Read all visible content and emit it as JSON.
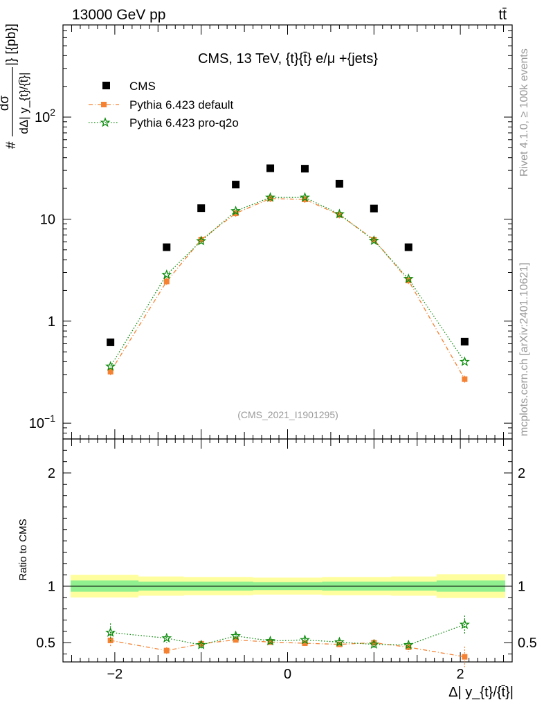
{
  "header": {
    "energy_label": "13000 GeV pp",
    "process_label": "tt̄",
    "side_label_rivet": "Rivet 4.1.0, ≥ 100k events",
    "side_label_mcplots": "mcplots.cern.ch [arXiv:2401.10621]"
  },
  "colors": {
    "cms": "#000000",
    "pythia_default": "#f58232",
    "pythia_proq2o": "#0a8a0a",
    "band_inner": "#90f090",
    "band_outer": "#fffe9e"
  },
  "chart_data": [
    {
      "type": "scatter",
      "title": "CMS, 13 TeV, {t}{t̄} e/μ +{jets}",
      "watermark": "(CMS_2021_I1901295)",
      "ylabel_numerator": "dσ",
      "ylabel_denominator": "dΔ| y_{t}/{t̄}|",
      "ylabel_prefix": "#",
      "ylabel_suffix": "|} [{pb}]",
      "yscale": "log",
      "ylim": [
        0.07,
        800
      ],
      "xlim": [
        -2.6,
        2.6
      ],
      "y_ticks": [
        {
          "value": 0.1,
          "base": "10",
          "exp": "−1"
        },
        {
          "value": 1,
          "base": "1",
          "exp": ""
        },
        {
          "value": 10,
          "base": "10",
          "exp": ""
        },
        {
          "value": 100,
          "base": "10",
          "exp": "2"
        }
      ],
      "legend_position": "top-left",
      "x": [
        -2.05,
        -1.4,
        -1.0,
        -0.6,
        -0.2,
        0.2,
        0.6,
        1.0,
        1.4,
        2.05
      ],
      "series": [
        {
          "name": "CMS",
          "values": [
            0.62,
            5.3,
            12.8,
            21.8,
            31.5,
            31.2,
            22.2,
            12.7,
            5.3,
            0.63
          ]
        },
        {
          "name": "Pythia 6.423 default",
          "values": [
            0.32,
            2.45,
            6.3,
            11.4,
            15.9,
            15.6,
            11.0,
            6.3,
            2.5,
            0.27
          ]
        },
        {
          "name": "Pythia 6.423 pro-q2o",
          "values": [
            0.36,
            2.85,
            6.1,
            12.0,
            16.3,
            16.3,
            11.2,
            6.15,
            2.6,
            0.4
          ]
        }
      ]
    },
    {
      "type": "line",
      "ylabel": "Ratio to CMS",
      "xlabel": "Δ| y_{t}/{t̄}|",
      "ylim": [
        0.33,
        2.3
      ],
      "xlim": [
        -2.6,
        2.6
      ],
      "x_ticks": [
        -2,
        0,
        2
      ],
      "x_tick_labels": [
        "−2",
        "0",
        "2"
      ],
      "y_ticks": [
        0.5,
        1,
        2
      ],
      "y_tick_labels": [
        "0.5",
        "1",
        "2"
      ],
      "x": [
        -2.05,
        -1.4,
        -1.0,
        -0.6,
        -0.2,
        0.2,
        0.6,
        1.0,
        1.4,
        2.05
      ],
      "series": [
        {
          "name": "Pythia 6.423 default",
          "values": [
            0.52,
            0.43,
            0.49,
            0.525,
            0.505,
            0.495,
            0.485,
            0.5,
            0.46,
            0.375
          ]
        },
        {
          "name": "Pythia 6.423 pro-q2o",
          "values": [
            0.59,
            0.54,
            0.48,
            0.56,
            0.515,
            0.525,
            0.505,
            0.485,
            0.48,
            0.66
          ]
        }
      ]
    }
  ]
}
